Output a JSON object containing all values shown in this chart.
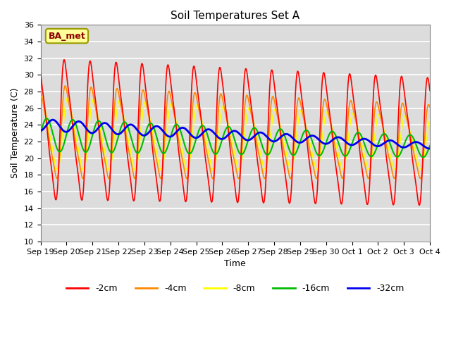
{
  "title": "Soil Temperatures Set A",
  "xlabel": "Time",
  "ylabel": "Soil Temperature (C)",
  "ylim": [
    10,
    36
  ],
  "yticks": [
    10,
    12,
    14,
    16,
    18,
    20,
    22,
    24,
    26,
    28,
    30,
    32,
    34,
    36
  ],
  "plot_bg": "#dcdcdc",
  "label_box_text": "BA_met",
  "label_box_facecolor": "#ffff99",
  "label_box_edgecolor": "#999900",
  "label_box_textcolor": "#8B0000",
  "series_colors": {
    "-2cm": "#ff0000",
    "-4cm": "#ff8800",
    "-8cm": "#ffff00",
    "-16cm": "#00bb00",
    "-32cm": "#0000ee"
  },
  "series_linewidths": {
    "-2cm": 1.2,
    "-4cm": 1.2,
    "-8cm": 1.2,
    "-16cm": 1.5,
    "-32cm": 2.0
  },
  "n_points": 1440,
  "total_days": 15,
  "xtick_labels": [
    "Sep 19",
    "Sep 20",
    "Sep 21",
    "Sep 22",
    "Sep 23",
    "Sep 24",
    "Sep 25",
    "Sep 26",
    "Sep 27",
    "Sep 28",
    "Sep 29",
    "Sep 30",
    "Oct 1",
    "Oct 2",
    "Oct 3",
    "Oct 4"
  ],
  "xtick_positions": [
    0,
    1,
    2,
    3,
    4,
    5,
    6,
    7,
    8,
    9,
    10,
    11,
    12,
    13,
    14,
    15
  ]
}
